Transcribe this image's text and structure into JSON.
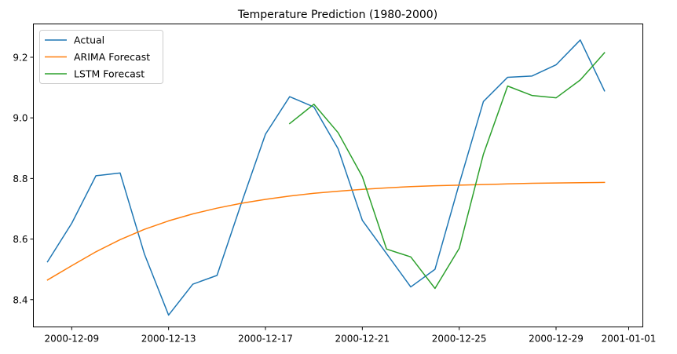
{
  "chart_data": {
    "type": "line",
    "title": "Temperature Prediction (1980-2000)",
    "xlabel": "",
    "ylabel": "",
    "x_type": "date",
    "xlim": [
      "2000-12-07T10:00",
      "2001-01-01T14:00"
    ],
    "ylim": [
      8.31,
      9.31
    ],
    "x_ticks": [
      {
        "value": "2000-12-09",
        "label": "2000-12-09"
      },
      {
        "value": "2000-12-13",
        "label": "2000-12-13"
      },
      {
        "value": "2000-12-17",
        "label": "2000-12-17"
      },
      {
        "value": "2000-12-21",
        "label": "2000-12-21"
      },
      {
        "value": "2000-12-25",
        "label": "2000-12-25"
      },
      {
        "value": "2000-12-29",
        "label": "2000-12-29"
      },
      {
        "value": "2001-01-01",
        "label": "2001-01-01"
      }
    ],
    "y_ticks": [
      {
        "value": 8.4,
        "label": "8.4"
      },
      {
        "value": 8.6,
        "label": "8.6"
      },
      {
        "value": 8.8,
        "label": "8.8"
      },
      {
        "value": 9.0,
        "label": "9.0"
      },
      {
        "value": 9.2,
        "label": "9.2"
      }
    ],
    "grid": false,
    "legend_position": "top-left",
    "series": [
      {
        "name": "Actual",
        "color": "#1f77b4",
        "x": [
          "2000-12-08",
          "2000-12-09",
          "2000-12-10",
          "2000-12-11",
          "2000-12-12",
          "2000-12-13",
          "2000-12-14",
          "2000-12-15",
          "2000-12-16",
          "2000-12-17",
          "2000-12-18",
          "2000-12-19",
          "2000-12-20",
          "2000-12-21",
          "2000-12-22",
          "2000-12-23",
          "2000-12-24",
          "2000-12-25",
          "2000-12-26",
          "2000-12-27",
          "2000-12-28",
          "2000-12-29",
          "2000-12-30",
          "2000-12-31"
        ],
        "values": [
          8.525,
          8.652,
          8.809,
          8.818,
          8.551,
          8.349,
          8.451,
          8.48,
          8.717,
          8.946,
          9.07,
          9.036,
          8.898,
          8.662,
          8.552,
          8.442,
          8.5,
          8.782,
          9.054,
          9.134,
          9.138,
          9.175,
          9.257,
          9.089
        ]
      },
      {
        "name": "ARIMA Forecast",
        "color": "#ff7f0e",
        "x": [
          "2000-12-08",
          "2000-12-09",
          "2000-12-10",
          "2000-12-11",
          "2000-12-12",
          "2000-12-13",
          "2000-12-14",
          "2000-12-15",
          "2000-12-16",
          "2000-12-17",
          "2000-12-18",
          "2000-12-19",
          "2000-12-20",
          "2000-12-21",
          "2000-12-22",
          "2000-12-23",
          "2000-12-24",
          "2000-12-25",
          "2000-12-26",
          "2000-12-27",
          "2000-12-28",
          "2000-12-29",
          "2000-12-30",
          "2000-12-31"
        ],
        "values": [
          8.465,
          8.512,
          8.558,
          8.598,
          8.632,
          8.66,
          8.683,
          8.702,
          8.718,
          8.731,
          8.742,
          8.751,
          8.758,
          8.764,
          8.769,
          8.773,
          8.776,
          8.778,
          8.78,
          8.782,
          8.784,
          8.785,
          8.786,
          8.787
        ]
      },
      {
        "name": "LSTM Forecast",
        "color": "#2ca02c",
        "x": [
          "2000-12-18",
          "2000-12-19",
          "2000-12-20",
          "2000-12-21",
          "2000-12-22",
          "2000-12-23",
          "2000-12-24",
          "2000-12-25",
          "2000-12-26",
          "2000-12-27",
          "2000-12-28",
          "2000-12-29",
          "2000-12-30",
          "2000-12-31"
        ],
        "values": [
          8.981,
          9.045,
          8.951,
          8.806,
          8.567,
          8.541,
          8.437,
          8.569,
          8.88,
          9.105,
          9.074,
          9.066,
          9.125,
          9.215
        ]
      }
    ]
  }
}
